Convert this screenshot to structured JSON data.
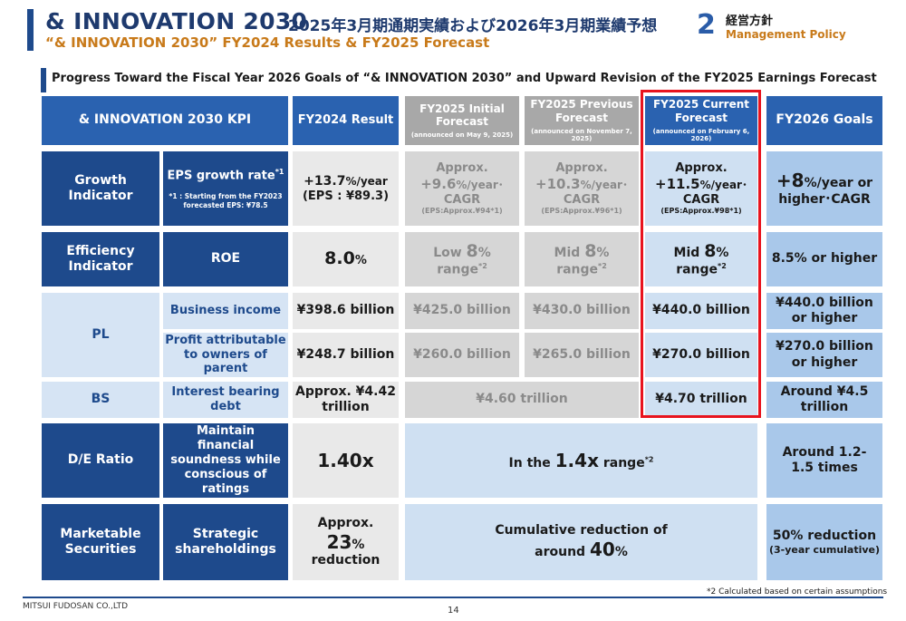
{
  "header": {
    "title": "& INNOVATION 2030",
    "title_jp": "2025年3月期通期実績および2026年3月期業績予想",
    "subtitle": "“& INNOVATION 2030” FY2024 Results & FY2025 Forecast",
    "section_number": "2",
    "section_jp": "経営方針",
    "section_en": "Management Policy"
  },
  "slide_title": "Progress Toward the Fiscal Year 2026 Goals of “& INNOVATION 2030” and Upward Revision of the FY2025 Earnings Forecast",
  "table": {
    "headers": {
      "kpi": "& INNOVATION 2030 KPI",
      "fy2024": "FY2024 Result",
      "initial": "FY2025 Initial Forecast",
      "initial_note": "(announced on May 9, 2025)",
      "previous": "FY2025 Previous Forecast",
      "previous_note": "(announced on November 7, 2025)",
      "current": "FY2025 Current Forecast",
      "current_note": "(announced on February 6, 2026)",
      "goals": "FY2026 Goals"
    },
    "growth": {
      "category": "Growth Indicator",
      "kpi": "EPS growth rate",
      "kpi_sup": "*1",
      "kpi_note": "*1 : Starting from the FY2023 forecasted EPS: ¥78.5",
      "fy2024_main": "+13.7",
      "fy2024_unit": "%/year",
      "fy2024_sub": "(EPS : ¥89.3)",
      "approx": "Approx.",
      "initial_val": "+9.6",
      "initial_unit": "%/year･",
      "cagr": "CAGR",
      "initial_eps": "(EPS:Approx.¥94*1)",
      "previous_val": "+10.3",
      "previous_unit": "%/year･",
      "previous_eps": "(EPS:Approx.¥96*1)",
      "current_val": "+11.5",
      "current_unit": "%/year･",
      "current_eps": "(EPS:Approx.¥98*1)",
      "goal_val": "+8",
      "goal_unit": "%/year or",
      "goal_line2": "higher･CAGR"
    },
    "efficiency": {
      "category": "Efficiency Indicator",
      "kpi": "ROE",
      "fy2024_val": "8.0",
      "fy2024_unit": "%",
      "initial_pre": "Low",
      "mid_pre": "Mid",
      "range_val": "8",
      "range_unit": "%",
      "range_word": "range",
      "range_sup": "*2",
      "goal": "8.5% or higher"
    },
    "pl": {
      "category": "PL",
      "row1_kpi": "Business income",
      "row1_fy2024": "¥398.6 billion",
      "row1_initial": "¥425.0 billion",
      "row1_previous": "¥430.0 billion",
      "row1_current": "¥440.0 billion",
      "row1_goal": "¥440.0 billion or higher",
      "row2_kpi": "Profit attributable to owners of parent",
      "row2_fy2024": "¥248.7 billion",
      "row2_initial": "¥260.0 billion",
      "row2_previous": "¥265.0 billion",
      "row2_current": "¥270.0 billion",
      "row2_goal": "¥270.0 billion or higher"
    },
    "bs": {
      "category": "BS",
      "kpi": "Interest bearing debt",
      "fy2024": "Approx. ¥4.42 trillion",
      "initial_previous": "¥4.60 trillion",
      "current": "¥4.70 trillion",
      "goal": "Around ¥4.5 trillion"
    },
    "de": {
      "category": "D/E Ratio",
      "kpi": "Maintain financial soundness while conscious of ratings",
      "fy2024": "1.40x",
      "forecast_pre": "In the",
      "forecast_val": "1.4x",
      "forecast_post": "range",
      "forecast_sup": "*2",
      "goal": "Around 1.2-1.5 times"
    },
    "marketable": {
      "category": "Marketable Securities",
      "kpi": "Strategic shareholdings",
      "fy2024_pre": "Approx.",
      "fy2024_val": "23",
      "fy2024_unit": "%",
      "fy2024_post": "reduction",
      "forecast_line1": "Cumulative reduction of",
      "forecast_pre": "around",
      "forecast_val": "40",
      "forecast_unit": "%",
      "goal_main": "50% reduction",
      "goal_sub": "(3-year cumulative)"
    }
  },
  "footnote": "*2 Calculated based on certain assumptions",
  "footer": {
    "company": "MITSUI FUDOSAN CO.,LTD",
    "page": "14"
  },
  "colors": {
    "navy": "#1e4a8c",
    "accent_orange": "#c87a1a",
    "highlight_red": "#e8141e"
  }
}
